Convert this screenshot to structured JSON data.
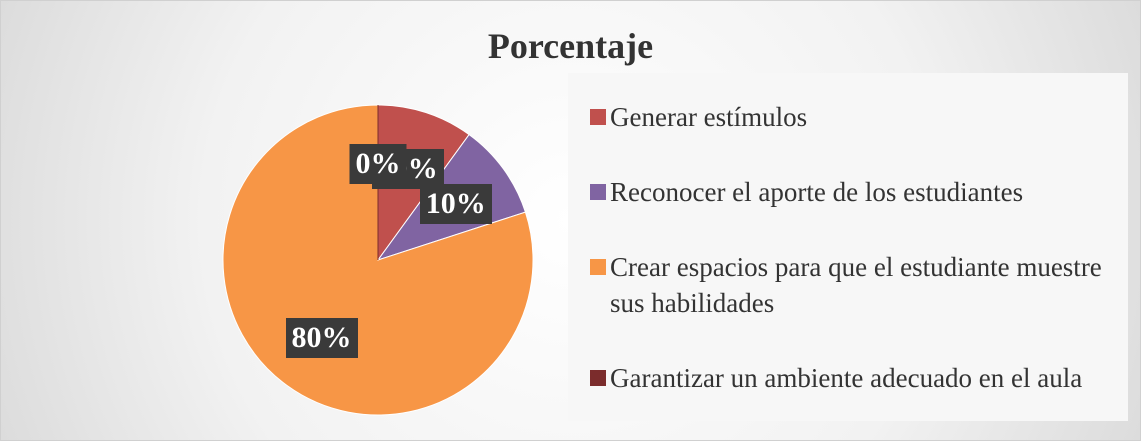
{
  "chart_data": {
    "type": "pie",
    "title": "Porcentaje",
    "categories": [
      "Generar estímulos",
      "Reconocer el aporte de los estudiantes",
      "Crear espacios para que el estudiante muestre sus habilidades",
      "Garantizar un ambiente adecuado en el aula"
    ],
    "values": [
      10,
      10,
      80,
      0
    ],
    "value_labels": [
      "10%",
      "10%",
      "80%",
      "0%"
    ],
    "colors": [
      "#c0504d",
      "#8064a2",
      "#f79646",
      "#7b2c2c"
    ],
    "legend": "right"
  }
}
